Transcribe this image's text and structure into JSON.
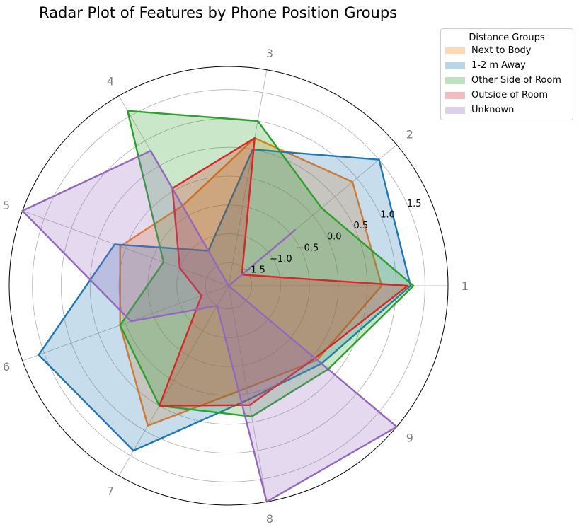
{
  "chart_data": {
    "type": "radar",
    "title": "Radar Plot of Features by Phone Position Groups",
    "categories": [
      "1",
      "2",
      "3",
      "4",
      "5",
      "6",
      "7",
      "8",
      "9"
    ],
    "radial_ticks": [
      "−1.5",
      "−1.0",
      "−0.5",
      "0.0",
      "0.5",
      "1.0",
      "1.5"
    ],
    "radial_tick_values": [
      -1.5,
      -1.0,
      -0.5,
      0.0,
      0.5,
      1.0,
      1.5
    ],
    "rlim": [
      -1.9,
      1.9
    ],
    "grid": true,
    "legend": {
      "title": "Distance Groups",
      "placement": "top-right, outside plot"
    },
    "series": [
      {
        "name": "Next to Body",
        "color": "#ff7f0e",
        "values": [
          0.75,
          0.9,
          0.7,
          -0.3,
          0.1,
          0.1,
          0.9,
          -0.1,
          0.1
        ]
      },
      {
        "name": "1-2 m Away",
        "color": "#1f77b4",
        "values": [
          1.25,
          1.5,
          0.5,
          -1.2,
          0.2,
          1.6,
          1.4,
          0.1,
          0.2
        ]
      },
      {
        "name": "Other Side of Room",
        "color": "#2ca02c",
        "values": [
          1.3,
          0.2,
          1.0,
          1.6,
          -0.7,
          0.1,
          0.5,
          0.4,
          0.35
        ]
      },
      {
        "name": "Outside of Room",
        "color": "#d62728",
        "values": [
          1.2,
          -1.6,
          0.7,
          0.05,
          -1.0,
          -1.4,
          0.5,
          0.2,
          0.05
        ]
      },
      {
        "name": "Unknown",
        "color": "#9467bd",
        "values": [
          -1.9,
          -0.4,
          -1.9,
          0.8,
          1.9,
          -0.1,
          -1.5,
          2.2,
          2.25
        ]
      }
    ]
  }
}
